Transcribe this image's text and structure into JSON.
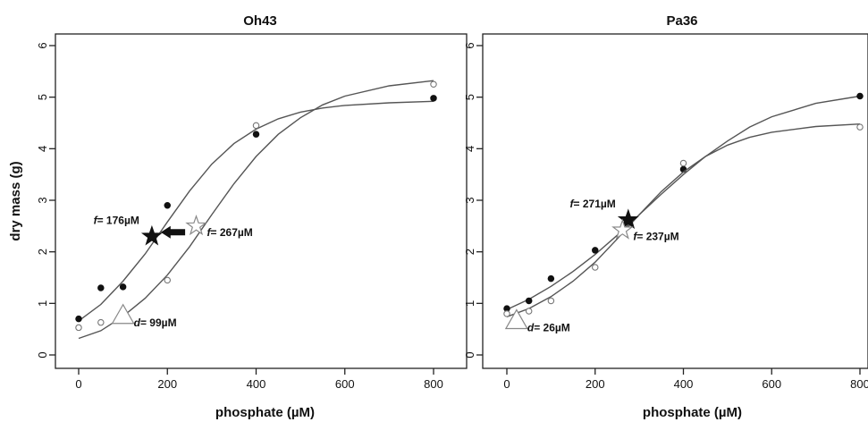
{
  "chart_data": [
    {
      "type": "scatter",
      "title": "Oh43",
      "xlabel": "phosphate (µM)",
      "ylabel": "dry mass (g)",
      "xlim": [
        0,
        800
      ],
      "ylim": [
        0,
        6
      ],
      "xticks": [
        "0",
        "200",
        "400",
        "600",
        "800"
      ],
      "yticks": [
        "0",
        "1",
        "2",
        "3",
        "4",
        "5",
        "6"
      ],
      "series": [
        {
          "marker": "filled-circle",
          "points": [
            [
              0,
              0.7
            ],
            [
              50,
              1.3
            ],
            [
              100,
              1.32
            ],
            [
              200,
              2.9
            ],
            [
              400,
              4.28
            ],
            [
              800,
              4.98
            ]
          ],
          "curve": [
            [
              0,
              0.66
            ],
            [
              50,
              0.98
            ],
            [
              100,
              1.43
            ],
            [
              150,
              1.96
            ],
            [
              200,
              2.58
            ],
            [
              250,
              3.18
            ],
            [
              300,
              3.7
            ],
            [
              350,
              4.1
            ],
            [
              400,
              4.38
            ],
            [
              450,
              4.58
            ],
            [
              500,
              4.71
            ],
            [
              550,
              4.79
            ],
            [
              600,
              4.84
            ],
            [
              700,
              4.89
            ],
            [
              800,
              4.92
            ]
          ]
        },
        {
          "marker": "open-circle",
          "points": [
            [
              0,
              0.53
            ],
            [
              50,
              0.63
            ],
            [
              100,
              0.72
            ],
            [
              200,
              1.45
            ],
            [
              400,
              4.45
            ],
            [
              800,
              5.25
            ]
          ],
          "curve": [
            [
              0,
              0.32
            ],
            [
              50,
              0.47
            ],
            [
              100,
              0.75
            ],
            [
              150,
              1.1
            ],
            [
              200,
              1.55
            ],
            [
              250,
              2.1
            ],
            [
              300,
              2.72
            ],
            [
              350,
              3.32
            ],
            [
              400,
              3.85
            ],
            [
              450,
              4.28
            ],
            [
              500,
              4.6
            ],
            [
              550,
              4.85
            ],
            [
              600,
              5.02
            ],
            [
              700,
              5.22
            ],
            [
              800,
              5.32
            ]
          ]
        }
      ],
      "annotations": [
        {
          "kind": "filled-star",
          "x": 165,
          "y": 2.3,
          "label_var": "f",
          "label_value": "= 176µM",
          "label_side": "left"
        },
        {
          "kind": "open-star",
          "x": 265,
          "y": 2.5,
          "label_var": "f",
          "label_value": "= 267µM",
          "label_side": "right"
        },
        {
          "kind": "open-triangle",
          "x": 100,
          "y": 0.75,
          "label_var": "d",
          "label_value": "= 99µM",
          "label_side": "right"
        },
        {
          "kind": "arrow-left",
          "x_from": 240,
          "x_to": 185,
          "y": 2.38
        }
      ]
    },
    {
      "type": "scatter",
      "title": "Pa36",
      "xlabel": "phosphate (µM)",
      "ylabel": "",
      "xlim": [
        0,
        800
      ],
      "ylim": [
        0,
        6
      ],
      "xticks": [
        "0",
        "200",
        "400",
        "600",
        "800"
      ],
      "yticks": [
        "0",
        "1",
        "2",
        "3",
        "4",
        "5",
        "6"
      ],
      "series": [
        {
          "marker": "filled-circle",
          "points": [
            [
              0,
              0.9
            ],
            [
              50,
              1.05
            ],
            [
              100,
              1.48
            ],
            [
              200,
              2.03
            ],
            [
              400,
              3.6
            ],
            [
              800,
              5.02
            ]
          ],
          "curve": [
            [
              0,
              0.88
            ],
            [
              50,
              1.08
            ],
            [
              100,
              1.33
            ],
            [
              150,
              1.62
            ],
            [
              200,
              1.95
            ],
            [
              250,
              2.32
            ],
            [
              300,
              2.72
            ],
            [
              350,
              3.12
            ],
            [
              400,
              3.5
            ],
            [
              450,
              3.85
            ],
            [
              500,
              4.15
            ],
            [
              550,
              4.42
            ],
            [
              600,
              4.62
            ],
            [
              700,
              4.88
            ],
            [
              800,
              5.02
            ]
          ]
        },
        {
          "marker": "open-circle",
          "points": [
            [
              0,
              0.8
            ],
            [
              50,
              0.85
            ],
            [
              100,
              1.05
            ],
            [
              200,
              1.7
            ],
            [
              400,
              3.72
            ],
            [
              800,
              4.42
            ]
          ],
          "curve": [
            [
              0,
              0.74
            ],
            [
              50,
              0.9
            ],
            [
              100,
              1.13
            ],
            [
              150,
              1.43
            ],
            [
              200,
              1.8
            ],
            [
              250,
              2.25
            ],
            [
              300,
              2.72
            ],
            [
              350,
              3.17
            ],
            [
              400,
              3.55
            ],
            [
              450,
              3.85
            ],
            [
              500,
              4.07
            ],
            [
              550,
              4.22
            ],
            [
              600,
              4.32
            ],
            [
              700,
              4.43
            ],
            [
              800,
              4.48
            ]
          ]
        }
      ],
      "annotations": [
        {
          "kind": "filled-star",
          "x": 275,
          "y": 2.62,
          "label_var": "f",
          "label_value": "= 271µM",
          "label_side": "left"
        },
        {
          "kind": "open-star",
          "x": 262,
          "y": 2.42,
          "label_var": "f",
          "label_value": "= 237µM",
          "label_side": "right"
        },
        {
          "kind": "open-triangle",
          "x": 22,
          "y": 0.65,
          "label_var": "d",
          "label_value": "= 26µM",
          "label_side": "right"
        }
      ]
    }
  ]
}
